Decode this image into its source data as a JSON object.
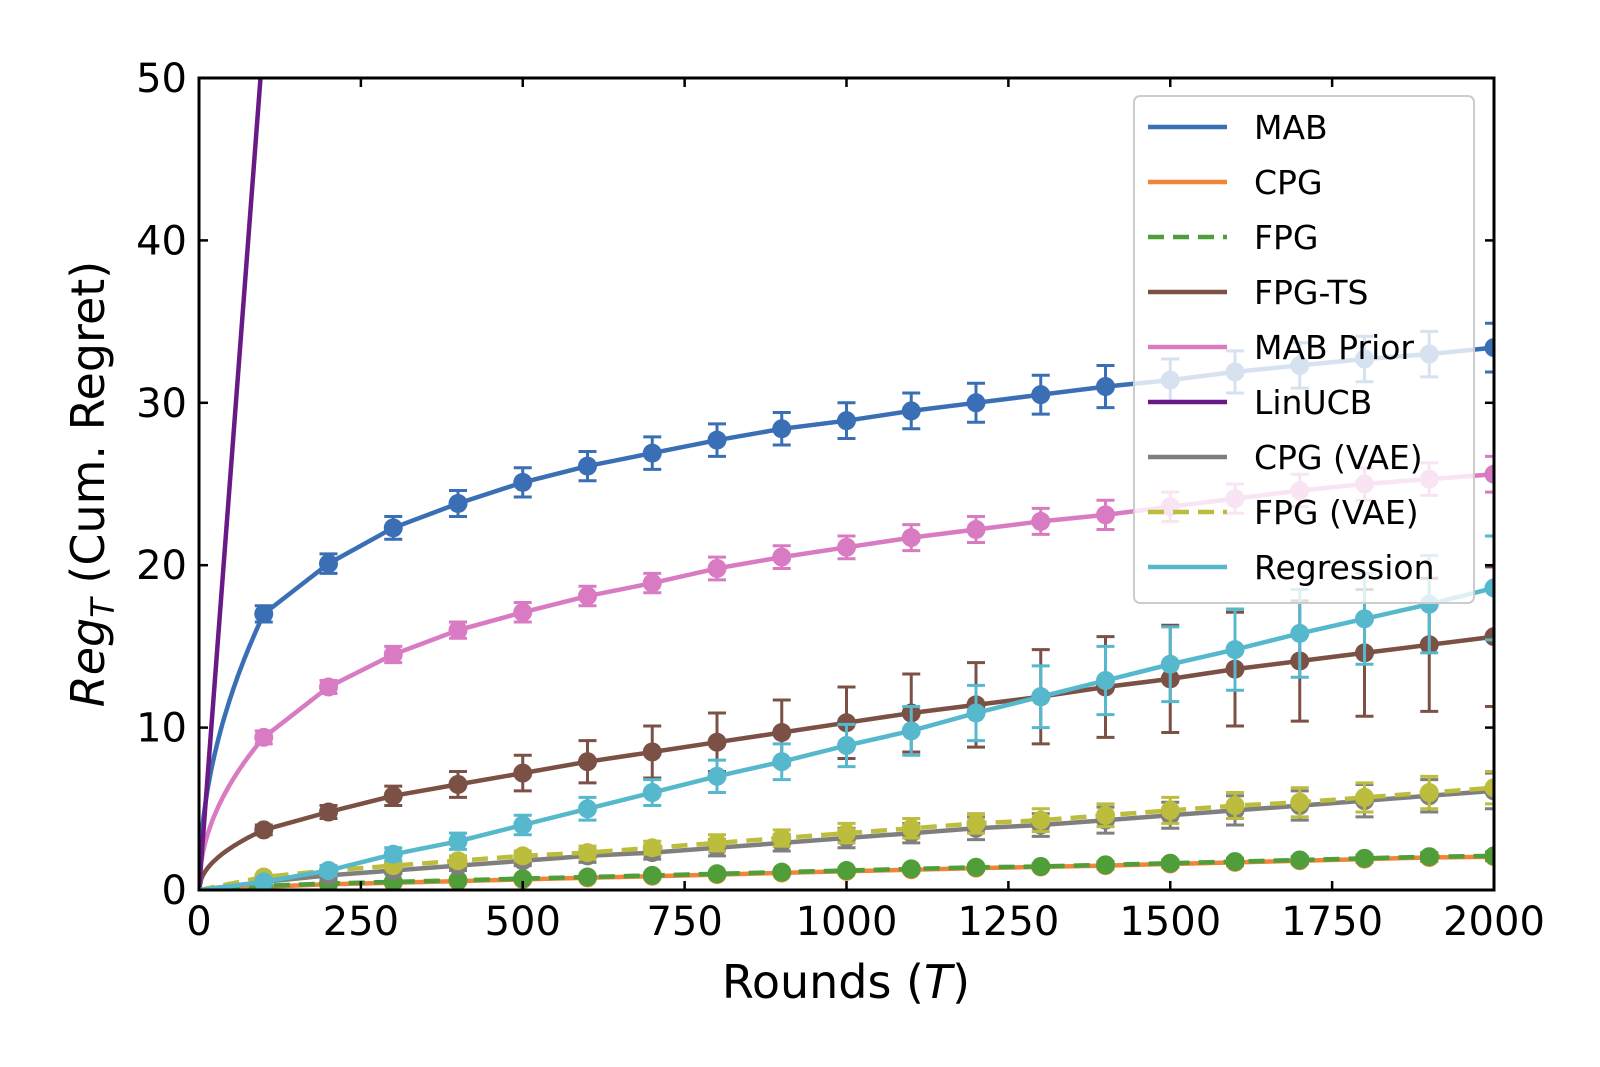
{
  "chart_data": {
    "type": "line",
    "xlabel": "Rounds (",
    "xlabel_var": "T",
    "xlabel_end": ")",
    "ylabel_main": "Reg",
    "ylabel_sub": "T",
    "ylabel_rest": " (Cum. Regret)",
    "xlim": [
      0,
      2000
    ],
    "ylim": [
      0,
      50
    ],
    "xticks": [
      0,
      250,
      500,
      750,
      1000,
      1250,
      1500,
      1750,
      2000
    ],
    "yticks": [
      0,
      10,
      20,
      30,
      40,
      50
    ],
    "grid": false,
    "legend_position": "top-right",
    "marker_x": [
      100,
      200,
      300,
      400,
      500,
      600,
      700,
      800,
      900,
      1000,
      1100,
      1200,
      1300,
      1400,
      1500,
      1600,
      1700,
      1800,
      1900,
      2000
    ],
    "series": [
      {
        "name": "MAB",
        "color": "#3a6fb5",
        "dash": false,
        "shape": "sqrt",
        "values": [
          17.0,
          20.1,
          22.3,
          23.8,
          25.1,
          26.1,
          26.9,
          27.7,
          28.4,
          28.9,
          29.5,
          30.0,
          30.5,
          31.0,
          31.4,
          31.9,
          32.3,
          32.7,
          33.0,
          33.4
        ],
        "errors": [
          0.5,
          0.6,
          0.7,
          0.8,
          0.9,
          0.9,
          1.0,
          1.0,
          1.0,
          1.1,
          1.1,
          1.2,
          1.2,
          1.3,
          1.3,
          1.3,
          1.4,
          1.4,
          1.4,
          1.5
        ]
      },
      {
        "name": "CPG",
        "color": "#f0853a",
        "dash": false,
        "shape": "linear",
        "values": [
          0.2,
          0.35,
          0.45,
          0.55,
          0.65,
          0.75,
          0.85,
          0.95,
          1.05,
          1.15,
          1.25,
          1.35,
          1.42,
          1.5,
          1.6,
          1.7,
          1.8,
          1.9,
          2.0,
          2.05
        ],
        "errors": [
          0.05,
          0.05,
          0.05,
          0.1,
          0.1,
          0.1,
          0.1,
          0.1,
          0.1,
          0.15,
          0.15,
          0.15,
          0.15,
          0.2,
          0.2,
          0.2,
          0.2,
          0.2,
          0.25,
          0.25
        ]
      },
      {
        "name": "FPG",
        "color": "#4f9e3a",
        "dash": true,
        "shape": "linear",
        "values": [
          0.25,
          0.4,
          0.5,
          0.6,
          0.7,
          0.8,
          0.9,
          1.0,
          1.1,
          1.2,
          1.3,
          1.4,
          1.45,
          1.55,
          1.65,
          1.75,
          1.85,
          1.95,
          2.05,
          2.1
        ],
        "errors": [
          0.05,
          0.05,
          0.05,
          0.1,
          0.1,
          0.1,
          0.1,
          0.1,
          0.1,
          0.15,
          0.15,
          0.15,
          0.15,
          0.2,
          0.2,
          0.2,
          0.2,
          0.2,
          0.25,
          0.25
        ]
      },
      {
        "name": "FPG-TS",
        "color": "#7b5146",
        "dash": false,
        "shape": "sqrt",
        "values": [
          3.7,
          4.8,
          5.8,
          6.5,
          7.2,
          7.9,
          8.5,
          9.1,
          9.7,
          10.3,
          10.9,
          11.4,
          11.9,
          12.5,
          13.0,
          13.6,
          14.1,
          14.6,
          15.1,
          15.6
        ],
        "errors": [
          0.3,
          0.4,
          0.6,
          0.8,
          1.1,
          1.3,
          1.6,
          1.8,
          2.0,
          2.2,
          2.4,
          2.6,
          2.9,
          3.1,
          3.3,
          3.5,
          3.7,
          3.9,
          4.1,
          4.3
        ]
      },
      {
        "name": "MAB Prior",
        "color": "#d97bc2",
        "dash": false,
        "shape": "sqrt",
        "values": [
          9.4,
          12.5,
          14.5,
          16.0,
          17.1,
          18.1,
          18.9,
          19.8,
          20.5,
          21.1,
          21.7,
          22.2,
          22.7,
          23.1,
          23.6,
          24.1,
          24.6,
          25.0,
          25.3,
          25.6
        ],
        "errors": [
          0.4,
          0.4,
          0.5,
          0.5,
          0.6,
          0.6,
          0.6,
          0.7,
          0.7,
          0.7,
          0.8,
          0.8,
          0.8,
          0.9,
          0.9,
          0.9,
          1.0,
          1.0,
          1.0,
          1.1
        ]
      },
      {
        "name": "LinUCB",
        "color": "#6a1a86",
        "dash": false,
        "shape": "linear",
        "line_x": [
          0,
          95
        ],
        "line_y": [
          0,
          50
        ],
        "values": [],
        "errors": []
      },
      {
        "name": "CPG (VAE)",
        "color": "#7f7f7f",
        "dash": false,
        "shape": "linear",
        "values": [
          0.5,
          0.9,
          1.2,
          1.5,
          1.8,
          2.1,
          2.3,
          2.6,
          2.9,
          3.2,
          3.5,
          3.8,
          4.0,
          4.3,
          4.6,
          4.9,
          5.2,
          5.5,
          5.8,
          6.1
        ],
        "errors": [
          0.1,
          0.2,
          0.2,
          0.3,
          0.3,
          0.4,
          0.4,
          0.5,
          0.5,
          0.6,
          0.6,
          0.7,
          0.7,
          0.8,
          0.8,
          0.9,
          0.9,
          1.0,
          1.0,
          1.1
        ]
      },
      {
        "name": "FPG (VAE)",
        "color": "#bcbd3d",
        "dash": true,
        "shape": "linear",
        "values": [
          0.8,
          1.2,
          1.5,
          1.8,
          2.1,
          2.3,
          2.6,
          2.9,
          3.2,
          3.5,
          3.8,
          4.1,
          4.3,
          4.6,
          4.9,
          5.2,
          5.4,
          5.7,
          6.0,
          6.3
        ],
        "errors": [
          0.1,
          0.2,
          0.2,
          0.3,
          0.3,
          0.4,
          0.4,
          0.5,
          0.5,
          0.6,
          0.6,
          0.6,
          0.7,
          0.7,
          0.8,
          0.8,
          0.9,
          0.9,
          1.0,
          1.0
        ]
      },
      {
        "name": "Regression",
        "color": "#56b8cc",
        "dash": false,
        "shape": "linear",
        "values": [
          0.5,
          1.2,
          2.2,
          3.0,
          4.0,
          5.0,
          6.0,
          7.0,
          7.9,
          8.9,
          9.8,
          10.9,
          11.9,
          12.9,
          13.9,
          14.8,
          15.8,
          16.7,
          17.6,
          18.6
        ],
        "errors": [
          0.2,
          0.3,
          0.4,
          0.5,
          0.6,
          0.7,
          0.8,
          1.0,
          1.1,
          1.3,
          1.5,
          1.7,
          1.9,
          2.1,
          2.3,
          2.5,
          2.7,
          2.8,
          3.0,
          3.2
        ]
      }
    ]
  }
}
